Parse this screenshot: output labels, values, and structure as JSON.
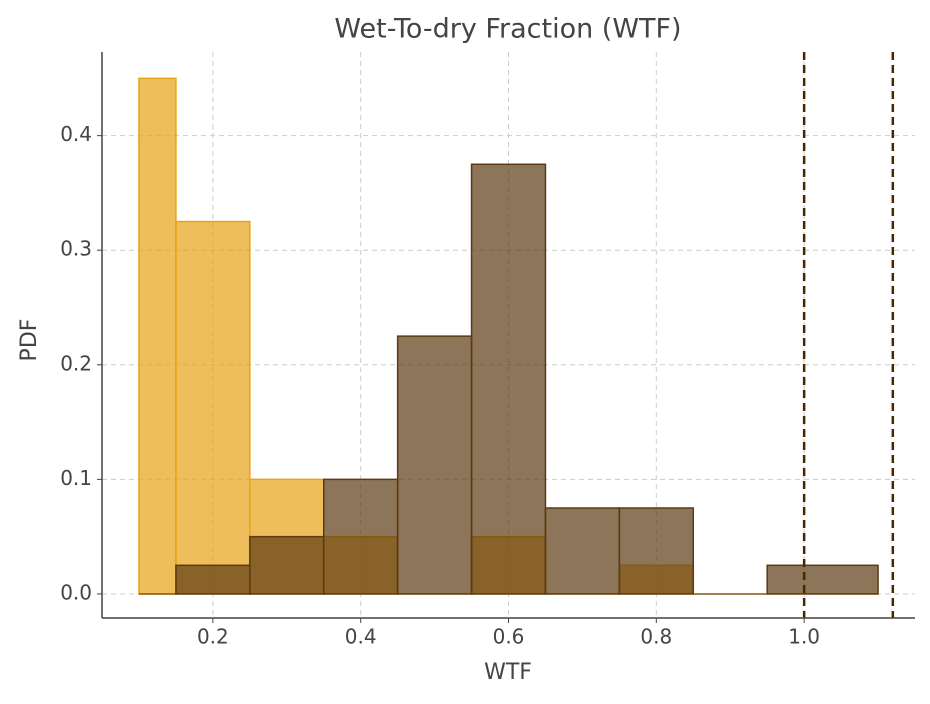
{
  "chart_data": {
    "type": "histogram",
    "title": "Wet-To-dry Fraction (WTF)",
    "x_label": "WTF",
    "y_label": "PDF",
    "bins": [
      0.1,
      0.15,
      0.25,
      0.35,
      0.45,
      0.55,
      0.65,
      0.75,
      0.85,
      0.95,
      1.1
    ],
    "series": [
      {
        "color": "#e8a317",
        "values": [
          0.45,
          0.325,
          0.1,
          0.05,
          0,
          0.05,
          0,
          0.025,
          0,
          0
        ]
      },
      {
        "color": "#5c3a12",
        "values": [
          0,
          0.025,
          0.05,
          0.1,
          0.225,
          0.375,
          0.075,
          0.075,
          0,
          0.025
        ]
      }
    ],
    "vlines": [
      1.0,
      1.12
    ],
    "vline_color": "#4a2600",
    "xlim": [
      0.05,
      1.15
    ],
    "ylim": [
      -0.021,
      0.473
    ],
    "xticks": [
      0.2,
      0.4,
      0.6,
      0.8,
      {
        "value": 1,
        "label": "1.0"
      }
    ],
    "yticks": [
      {
        "value": 0,
        "label": "0.0"
      },
      0.1,
      0.2,
      0.3,
      0.4
    ],
    "grid": true
  }
}
